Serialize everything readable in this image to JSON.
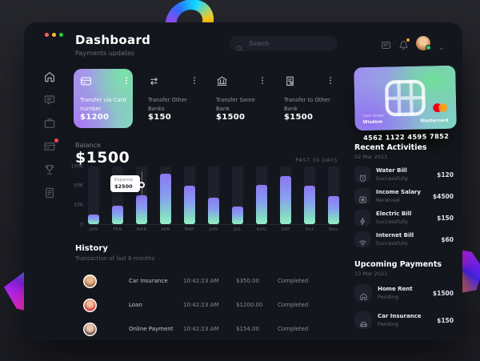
{
  "header": {
    "title": "Dashboard",
    "subtitle": "Payments updates"
  },
  "search": {
    "placeholder": "Search"
  },
  "topbar": {
    "icons": [
      {
        "icon": "inbox"
      },
      {
        "icon": "bell",
        "badge": true
      }
    ],
    "avatar": "user-photo",
    "status": "online"
  },
  "sidebar": {
    "items": [
      {
        "icon": "home",
        "active": true
      },
      {
        "icon": "chat"
      },
      {
        "icon": "briefcase"
      },
      {
        "icon": "card",
        "badge": true
      },
      {
        "icon": "trophy"
      },
      {
        "icon": "file"
      }
    ]
  },
  "transfer_cards": [
    {
      "icon": "creditcard",
      "label": "Transfer via Card number",
      "amount": "$1200",
      "highlight": true
    },
    {
      "icon": "arrows",
      "label": "Transfer Other Banks",
      "amount": "$150"
    },
    {
      "icon": "bank",
      "label": "Transfer Same Bank",
      "amount": "$1500"
    },
    {
      "icon": "receipt",
      "label": "Transfer to Other Bank",
      "amount": "$1500"
    }
  ],
  "credit_card": {
    "number": "4562 1122 4595 7852",
    "holder_label": "Card Holder",
    "holder": "Wisdom",
    "brand": "Mastercard"
  },
  "balance": {
    "label": "Balance",
    "value": "$1500",
    "period": "PAST 30 DAYS"
  },
  "chart_data": {
    "type": "bar",
    "title": "Balance — past 30 days",
    "categories": [
      "JAN",
      "FEB",
      "MAR",
      "APR",
      "MAY",
      "JUN",
      "JUL",
      "AUG",
      "SEP",
      "Oct",
      "Nov"
    ],
    "values_pct": [
      16,
      32,
      50,
      88,
      66,
      46,
      30,
      68,
      84,
      66,
      48
    ],
    "y_ticks": [
      "100K",
      "50K",
      "10K",
      "0"
    ],
    "ylim": [
      "0",
      "100K"
    ],
    "grid": false,
    "tooltip": {
      "label": "Expense",
      "value": "$2500",
      "category": "MAR"
    }
  },
  "history": {
    "title": "History",
    "subtitle": "Transaction of last 6 months",
    "rows": [
      {
        "avatar": "a1",
        "name": "Car Insurance",
        "time": "10:42:23 AM",
        "amount": "$350.00",
        "status": "Completed"
      },
      {
        "avatar": "a2",
        "name": "Loan",
        "time": "10:42:23 AM",
        "amount": "$1200.00",
        "status": "Completed"
      },
      {
        "avatar": "a3",
        "name": "Online Payment",
        "time": "10:42:23 AM",
        "amount": "$154.00",
        "status": "Completed"
      }
    ]
  },
  "recent_activities": {
    "title": "Recent Activities",
    "date": "02 Mar 2021",
    "items": [
      {
        "icon": "clock",
        "name": "Water Bill",
        "status": "Successfully",
        "amount": "$120"
      },
      {
        "icon": "wallet",
        "name": "Income Salary",
        "status": "Received",
        "amount": "$4500"
      },
      {
        "icon": "zap",
        "name": "Electric Bill",
        "status": "Successfully",
        "amount": "$150"
      },
      {
        "icon": "wifi",
        "name": "Internet Bill",
        "status": "Successfully",
        "amount": "$60"
      }
    ]
  },
  "upcoming_payments": {
    "title": "Upcoming Payments",
    "date": "13 Mar 2021",
    "items": [
      {
        "icon": "home",
        "name": "Home Rent",
        "status": "Pending",
        "amount": "$1500"
      },
      {
        "icon": "car",
        "name": "Car Insurance",
        "status": "Pending",
        "amount": "$150"
      }
    ]
  },
  "colors": {
    "panel_bg": "#14161d",
    "accent_purple": "#8c78f3",
    "accent_mint": "#8debc9",
    "badge_red": "#ff4546",
    "bell_dot": "#f5a623",
    "online_green": "#2ecc71",
    "mastercard_red": "#eb001b",
    "mastercard_orange": "#f79e1b"
  }
}
